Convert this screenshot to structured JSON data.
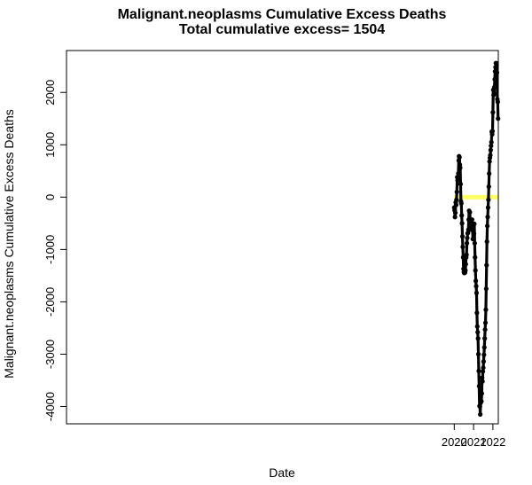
{
  "chart_data": {
    "type": "line",
    "title": "Malignant.neoplasms Cumulative Excess Deaths",
    "subtitle": "Total cumulative excess= 1504",
    "xlabel": "Date",
    "ylabel": "Malignant.neoplasms Cumulative Excess Deaths",
    "x_ticks": [
      {
        "value": 2020,
        "label": "2020"
      },
      {
        "value": 2021,
        "label": "2021"
      },
      {
        "value": 2022,
        "label": "2022"
      }
    ],
    "y_ticks": [
      {
        "value": -4000,
        "label": "-4000"
      },
      {
        "value": -3000,
        "label": "-3000"
      },
      {
        "value": -2000,
        "label": "-2000"
      },
      {
        "value": -1000,
        "label": "-1000"
      },
      {
        "value": 0,
        "label": "0"
      },
      {
        "value": 1000,
        "label": "1000"
      },
      {
        "value": 2000,
        "label": "2000"
      }
    ],
    "xlim": [
      1999.93,
      2022.28
    ],
    "ylim": [
      -4330,
      2800
    ],
    "grid": false,
    "reference_line": {
      "y": 0,
      "color": "#ffff66"
    },
    "series": [
      {
        "color": "#000000",
        "points": [
          [
            2020.0,
            -200
          ],
          [
            2020.019,
            -250
          ],
          [
            2020.038,
            -380
          ],
          [
            2020.058,
            -300
          ],
          [
            2020.077,
            -100
          ],
          [
            2020.096,
            -150
          ],
          [
            2020.115,
            -50
          ],
          [
            2020.135,
            100
          ],
          [
            2020.154,
            380
          ],
          [
            2020.173,
            320
          ],
          [
            2020.192,
            330
          ],
          [
            2020.212,
            450
          ],
          [
            2020.231,
            700
          ],
          [
            2020.25,
            780
          ],
          [
            2020.269,
            760
          ],
          [
            2020.288,
            620
          ],
          [
            2020.308,
            560
          ],
          [
            2020.327,
            250
          ],
          [
            2020.346,
            -80
          ],
          [
            2020.365,
            -120
          ],
          [
            2020.385,
            -350
          ],
          [
            2020.404,
            -500
          ],
          [
            2020.423,
            -750
          ],
          [
            2020.442,
            -950
          ],
          [
            2020.462,
            -1150
          ],
          [
            2020.481,
            -1370
          ],
          [
            2020.5,
            -1430
          ],
          [
            2020.519,
            -1450
          ],
          [
            2020.538,
            -1440
          ],
          [
            2020.558,
            -1440
          ],
          [
            2020.577,
            -1400
          ],
          [
            2020.596,
            -1280
          ],
          [
            2020.615,
            -1150
          ],
          [
            2020.635,
            -1100
          ],
          [
            2020.654,
            -880
          ],
          [
            2020.673,
            -780
          ],
          [
            2020.692,
            -690
          ],
          [
            2020.712,
            -680
          ],
          [
            2020.731,
            -620
          ],
          [
            2020.75,
            -430
          ],
          [
            2020.769,
            -260
          ],
          [
            2020.788,
            -480
          ],
          [
            2020.808,
            -290
          ],
          [
            2020.827,
            -560
          ],
          [
            2020.846,
            -540
          ],
          [
            2020.865,
            -620
          ],
          [
            2020.885,
            -500
          ],
          [
            2020.904,
            -440
          ],
          [
            2020.923,
            -430
          ],
          [
            2020.942,
            -520
          ],
          [
            2020.962,
            -800
          ],
          [
            2020.981,
            -620
          ],
          [
            2021.0,
            -680
          ],
          [
            2021.019,
            -700
          ],
          [
            2021.038,
            -510
          ],
          [
            2021.058,
            -880
          ],
          [
            2021.077,
            -1150
          ],
          [
            2021.096,
            -1400
          ],
          [
            2021.115,
            -1600
          ],
          [
            2021.135,
            -1700
          ],
          [
            2021.154,
            -1830
          ],
          [
            2021.173,
            -2210
          ],
          [
            2021.192,
            -2470
          ],
          [
            2021.212,
            -2580
          ],
          [
            2021.231,
            -2700
          ],
          [
            2021.25,
            -3000
          ],
          [
            2021.269,
            -3320
          ],
          [
            2021.288,
            -3610
          ],
          [
            2021.308,
            -3990
          ],
          [
            2021.327,
            -4000
          ],
          [
            2021.346,
            -4150
          ],
          [
            2021.365,
            -3930
          ],
          [
            2021.385,
            -3770
          ],
          [
            2021.404,
            -3900
          ],
          [
            2021.423,
            -3750
          ],
          [
            2021.442,
            -3450
          ],
          [
            2021.462,
            -3520
          ],
          [
            2021.481,
            -3330
          ],
          [
            2021.5,
            -3260
          ],
          [
            2021.519,
            -3140
          ],
          [
            2021.538,
            -3010
          ],
          [
            2021.558,
            -2870
          ],
          [
            2021.577,
            -2700
          ],
          [
            2021.596,
            -2530
          ],
          [
            2021.615,
            -2400
          ],
          [
            2021.635,
            -2150
          ],
          [
            2021.654,
            -1750
          ],
          [
            2021.673,
            -1300
          ],
          [
            2021.692,
            -850
          ],
          [
            2021.712,
            -550
          ],
          [
            2021.731,
            -380
          ],
          [
            2021.75,
            -200
          ],
          [
            2021.769,
            -50
          ],
          [
            2021.788,
            200
          ],
          [
            2021.808,
            450
          ],
          [
            2021.827,
            680
          ],
          [
            2021.846,
            750
          ],
          [
            2021.865,
            800
          ],
          [
            2021.885,
            900
          ],
          [
            2021.904,
            980
          ],
          [
            2021.923,
            1050
          ],
          [
            2021.942,
            1250
          ],
          [
            2021.962,
            1200
          ],
          [
            2021.981,
            1260
          ],
          [
            2022.0,
            1620
          ],
          [
            2022.019,
            2050
          ],
          [
            2022.038,
            1950
          ],
          [
            2022.058,
            1980
          ],
          [
            2022.077,
            2100
          ],
          [
            2022.096,
            2250
          ],
          [
            2022.115,
            2400
          ],
          [
            2022.135,
            2480
          ],
          [
            2022.154,
            2560
          ],
          [
            2022.173,
            2560
          ],
          [
            2022.192,
            2520
          ],
          [
            2022.212,
            2380
          ],
          [
            2022.231,
            1870
          ],
          [
            2022.25,
            1820
          ],
          [
            2022.269,
            1500
          ]
        ]
      }
    ]
  }
}
